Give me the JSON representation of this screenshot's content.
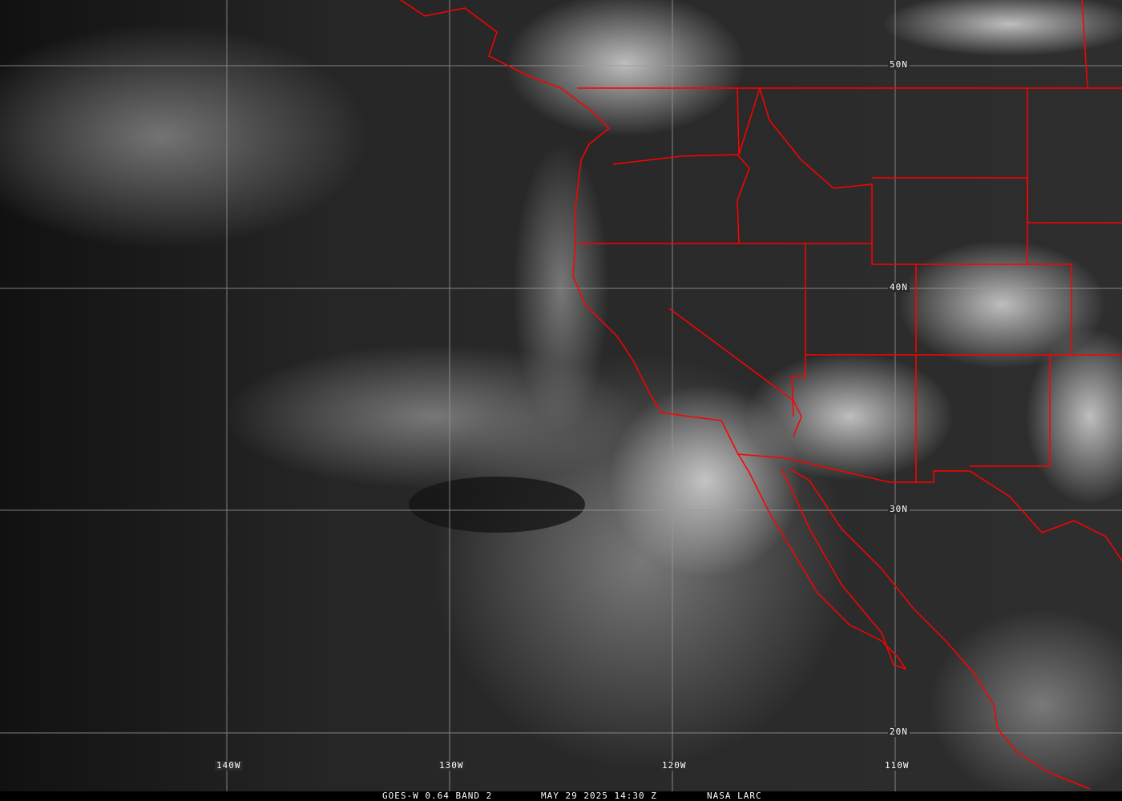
{
  "caption": {
    "satellite_band": "GOES-W 0.64 BAND 2",
    "datetime": "MAY 29 2025 14:30 Z",
    "source": "NASA LARC"
  },
  "grid": {
    "latitude_labels": [
      "50N",
      "40N",
      "30N",
      "20N"
    ],
    "longitude_labels": [
      "140W",
      "130W",
      "120W",
      "110W"
    ]
  },
  "colors": {
    "boundaries": "#ff0000",
    "gridlines": "#9a9a9a",
    "labels": "#ffffff"
  }
}
